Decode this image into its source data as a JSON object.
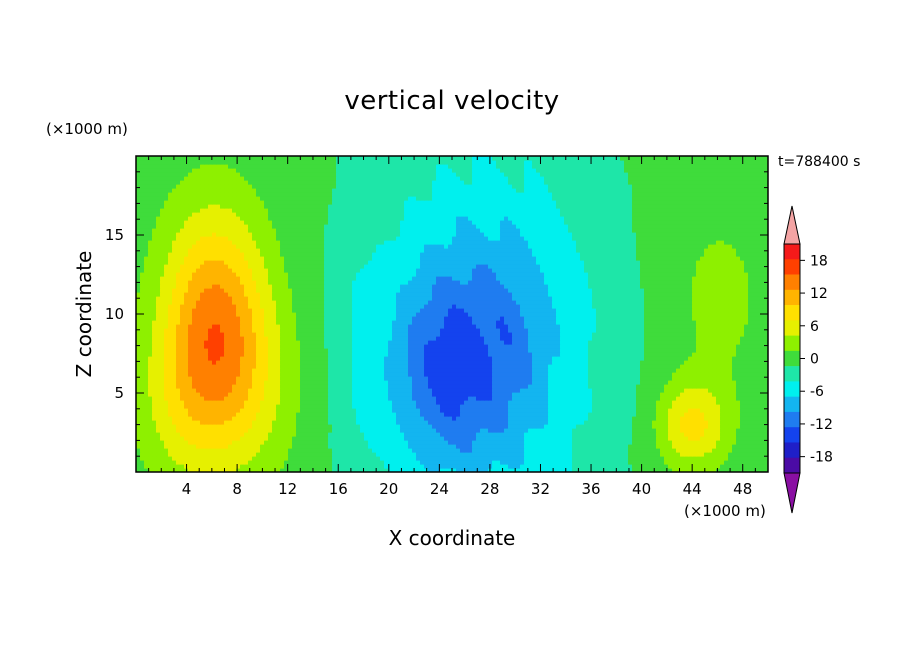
{
  "chart_data": {
    "type": "heatmap",
    "title": "vertical velocity",
    "xlabel": "X coordinate",
    "ylabel": "Z coordinate",
    "x_unit": "(×1000 m)",
    "z_unit": "(×1000 m)",
    "time_label": "t=788400 s",
    "xlim": [
      0,
      50
    ],
    "ylim": [
      0,
      20
    ],
    "xticks": [
      4,
      8,
      12,
      16,
      20,
      24,
      28,
      32,
      36,
      40,
      44,
      48
    ],
    "yticks": [
      5,
      10,
      15
    ],
    "colorbar": {
      "levels": [
        -21,
        -18,
        -15,
        -12,
        -9,
        -6,
        -3,
        0,
        3,
        6,
        9,
        12,
        15,
        18,
        21
      ],
      "tick_labels": [
        "18",
        "12",
        "6",
        "0",
        "-6",
        "-12",
        "-18"
      ],
      "tick_values": [
        18,
        12,
        6,
        0,
        -6,
        -12,
        -18
      ],
      "colors": [
        "#8a0fa3",
        "#4b0ba5",
        "#1f1fc8",
        "#1443ee",
        "#1f7cf0",
        "#13b5f0",
        "#00f0ee",
        "#1ee6a8",
        "#3fdc3b",
        "#8ef000",
        "#e6f000",
        "#ffe000",
        "#ffb400",
        "#ff8000",
        "#ff4000",
        "#f51a1a",
        "#f4a4a4"
      ]
    },
    "features": [
      {
        "kind": "updraft",
        "x": 6.2,
        "z": 8.8,
        "peak": 19
      },
      {
        "kind": "updraft",
        "x": 44,
        "z": 3,
        "peak": 10
      },
      {
        "kind": "downdraft",
        "x": 24.5,
        "z": 6.5,
        "peak": -14
      }
    ]
  }
}
